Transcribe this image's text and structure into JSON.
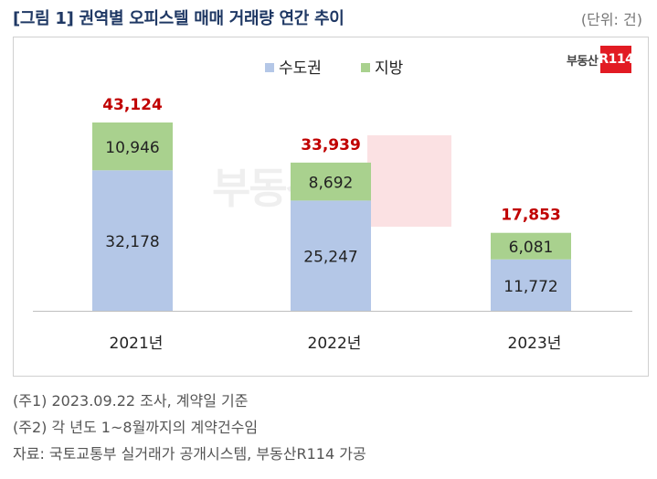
{
  "header": {
    "title": "[그림 1] 권역별 오피스텔 매매 거래량 연간 추이",
    "unit": "(단위: 건)"
  },
  "logo": {
    "text": "부동산",
    "box": "R114"
  },
  "watermark": {
    "text": "부동산",
    "box": "R114"
  },
  "chart_data": {
    "type": "bar",
    "stacked": true,
    "categories": [
      "2021년",
      "2022년",
      "2023년"
    ],
    "series": [
      {
        "name": "수도권",
        "values": [
          32178,
          25247,
          11772
        ],
        "color": "#b4c7e7"
      },
      {
        "name": "지방",
        "values": [
          10946,
          8692,
          6081
        ],
        "color": "#a9d18e"
      }
    ],
    "totals": [
      "43,124",
      "33,939",
      "17,853"
    ],
    "segment_labels": [
      [
        "32,178",
        "10,946"
      ],
      [
        "25,247",
        "8,692"
      ],
      [
        "11,772",
        "6,081"
      ]
    ],
    "total_values": [
      43124,
      33939,
      17853
    ],
    "total_color": "#c00000",
    "legend_position": "top",
    "grid": false
  },
  "notes": [
    "(주1) 2023.09.22 조사, 계약일 기준",
    "(주2) 각 년도 1~8월까지의 계약건수임",
    "자료: 국토교통부 실거래가 공개시스템, 부동산R114 가공"
  ]
}
